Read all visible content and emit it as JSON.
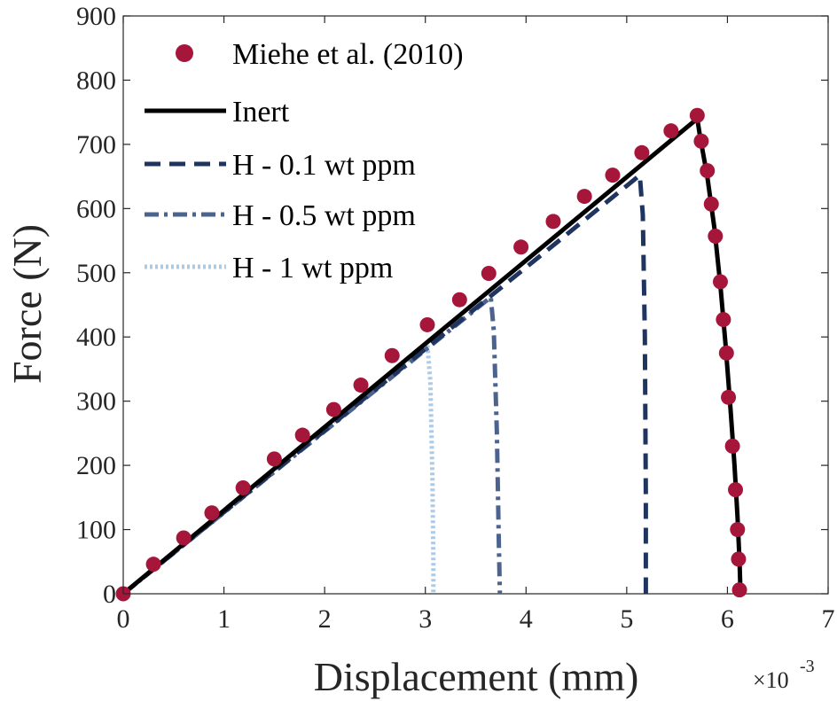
{
  "chart_data": {
    "type": "line",
    "xlabel": "Displacement (mm)",
    "ylabel": "Force (N)",
    "x_multiplier_label": "×10",
    "x_multiplier_exponent": "-3",
    "xlim": [
      0,
      7
    ],
    "ylim": [
      0,
      900
    ],
    "xticks": [
      0,
      1,
      2,
      3,
      4,
      5,
      6,
      7
    ],
    "yticks": [
      0,
      100,
      200,
      300,
      400,
      500,
      600,
      700,
      800,
      900
    ],
    "x_scale_note": "x values in units of 1e-3 mm",
    "grid": false,
    "legend_position": "top-left",
    "series": [
      {
        "name": "Miehe et al. (2010)",
        "style": "markers",
        "color": "#A6163A",
        "x": [
          0.0,
          0.3,
          0.6,
          0.88,
          1.19,
          1.5,
          1.78,
          2.09,
          2.36,
          2.67,
          3.02,
          3.34,
          3.63,
          3.95,
          4.27,
          4.58,
          4.86,
          5.15,
          5.44,
          5.7,
          5.74,
          5.8,
          5.84,
          5.88,
          5.93,
          5.96,
          5.99,
          6.01,
          6.05,
          6.08,
          6.1,
          6.11,
          6.12
        ],
        "y": [
          0,
          46,
          87,
          126,
          165,
          210,
          247,
          287,
          325,
          371,
          419,
          458,
          499,
          540,
          580,
          619,
          652,
          687,
          721,
          745,
          705,
          659,
          607,
          557,
          486,
          427,
          375,
          306,
          230,
          162,
          100,
          54,
          6
        ]
      },
      {
        "name": "Inert",
        "style": "solid",
        "color": "#000000",
        "x": [
          0.0,
          5.7,
          5.73,
          5.8,
          5.87,
          5.93,
          5.98,
          6.03,
          6.07,
          6.1,
          6.12,
          6.13
        ],
        "y": [
          0,
          740,
          710,
          650,
          570,
          480,
          390,
          290,
          200,
          120,
          50,
          0
        ]
      },
      {
        "name": "H - 0.1 wt ppm",
        "style": "dashed",
        "color": "#1F3560",
        "x": [
          0.0,
          5.13,
          5.16,
          5.18,
          5.19,
          5.19
        ],
        "y": [
          0,
          652,
          590,
          400,
          150,
          0
        ]
      },
      {
        "name": "H - 0.5 wt ppm",
        "style": "dashdot",
        "color": "#4C638F",
        "x": [
          0.0,
          3.65,
          3.68,
          3.71,
          3.73,
          3.74
        ],
        "y": [
          0,
          462,
          410,
          250,
          80,
          0
        ]
      },
      {
        "name": "H - 1 wt ppm",
        "style": "dotted",
        "color": "#A9CBEB",
        "x": [
          0.0,
          3.02,
          3.05,
          3.07,
          3.08,
          3.08
        ],
        "y": [
          0,
          388,
          330,
          180,
          50,
          0
        ]
      }
    ]
  }
}
